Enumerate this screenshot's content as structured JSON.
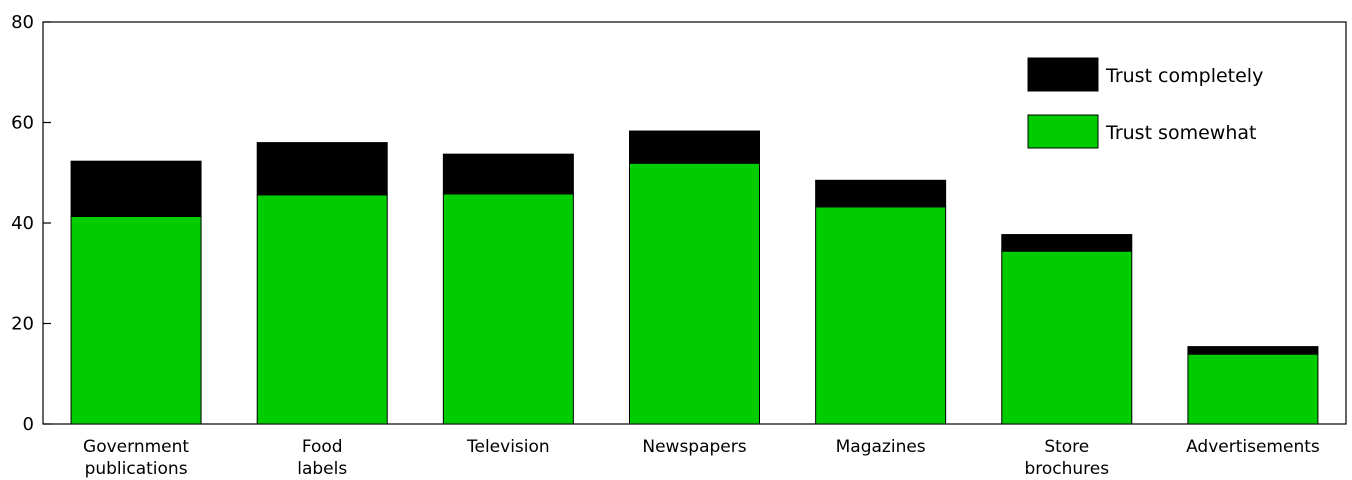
{
  "chart_data": {
    "type": "bar",
    "stacked": true,
    "categories": [
      [
        "Government",
        "publications"
      ],
      [
        "Food",
        "labels"
      ],
      [
        "Television"
      ],
      [
        "Newspapers"
      ],
      [
        "Magazines"
      ],
      [
        "Store",
        "brochures"
      ],
      [
        "Advertisements"
      ]
    ],
    "series": [
      {
        "name": "Trust somewhat",
        "color": "#00cc00",
        "values": [
          41.3,
          45.6,
          45.8,
          51.9,
          43.2,
          34.4,
          13.9
        ]
      },
      {
        "name": "Trust completely",
        "color": "#000000",
        "values": [
          11.0,
          10.4,
          7.9,
          6.4,
          5.3,
          3.3,
          1.5
        ]
      }
    ],
    "title": "",
    "xlabel": "",
    "ylabel": "",
    "ylim": [
      0,
      80
    ],
    "yticks": [
      0,
      20,
      40,
      60,
      80
    ],
    "grid": false,
    "legend_position": "top-right",
    "legend_order": [
      "Trust completely",
      "Trust somewhat"
    ]
  }
}
